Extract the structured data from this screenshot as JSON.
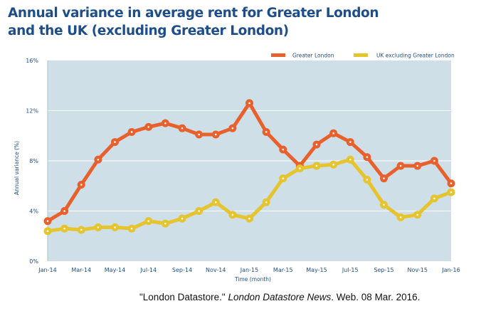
{
  "chart_data": {
    "type": "line",
    "title": "Annual variance in average rent for Greater London and the UK (excluding Greater London)",
    "title_lines": [
      "Annual variance in average rent for Greater London",
      "and the UK (excluding Greater London)"
    ],
    "xlabel": "Time (month)",
    "ylabel": "Annual variance (%)",
    "ylim": [
      0,
      16
    ],
    "yticks": [
      0,
      4,
      8,
      12,
      16
    ],
    "ytick_labels": [
      "0%",
      "4%",
      "8%",
      "12%",
      "16%"
    ],
    "grid": true,
    "legend_position": "top-right",
    "x": [
      "Jan-14",
      "Feb-14",
      "Mar-14",
      "Apr-14",
      "May-14",
      "Jun-14",
      "Jul-14",
      "Aug-14",
      "Sep-14",
      "Oct-14",
      "Nov-14",
      "Dec-14",
      "Jan-15",
      "Feb-15",
      "Mar-15",
      "Apr-15",
      "May-15",
      "Jun-15",
      "Jul-15",
      "Aug-15",
      "Sep-15",
      "Oct-15",
      "Nov-15",
      "Dec-15",
      "Jan-16"
    ],
    "xtick_labels": [
      "Jan-14",
      "Mar-14",
      "May-14",
      "Jul-14",
      "Sep-14",
      "Nov-14",
      "Jan-15",
      "Mar-15",
      "May-15",
      "Jul-15",
      "Sep-15",
      "Nov-15",
      "Jan-16"
    ],
    "series": [
      {
        "name": "Greater London",
        "color": "#e8602c",
        "values": [
          3.2,
          4.0,
          6.1,
          8.1,
          9.5,
          10.3,
          10.7,
          11.0,
          10.6,
          10.1,
          10.1,
          10.6,
          12.6,
          10.3,
          8.9,
          7.6,
          9.3,
          10.2,
          9.5,
          8.3,
          6.6,
          7.6,
          7.6,
          8.0,
          6.2
        ]
      },
      {
        "name": "UK excluding Greater London",
        "color": "#e5c42e",
        "values": [
          2.4,
          2.6,
          2.5,
          2.7,
          2.7,
          2.6,
          3.2,
          3.0,
          3.4,
          4.0,
          4.7,
          3.7,
          3.4,
          4.7,
          6.6,
          7.4,
          7.6,
          7.7,
          8.1,
          6.5,
          4.5,
          3.5,
          3.7,
          5.0,
          5.5
        ]
      }
    ],
    "plot_background": "#cfdfe7",
    "gridline_color": "#ffffff",
    "text_color": "#1d4e89"
  },
  "citation": {
    "source": "\"London Datastore.\"",
    "publication": "London Datastore News",
    "rest": ". Web. 08 Mar. 2016."
  }
}
